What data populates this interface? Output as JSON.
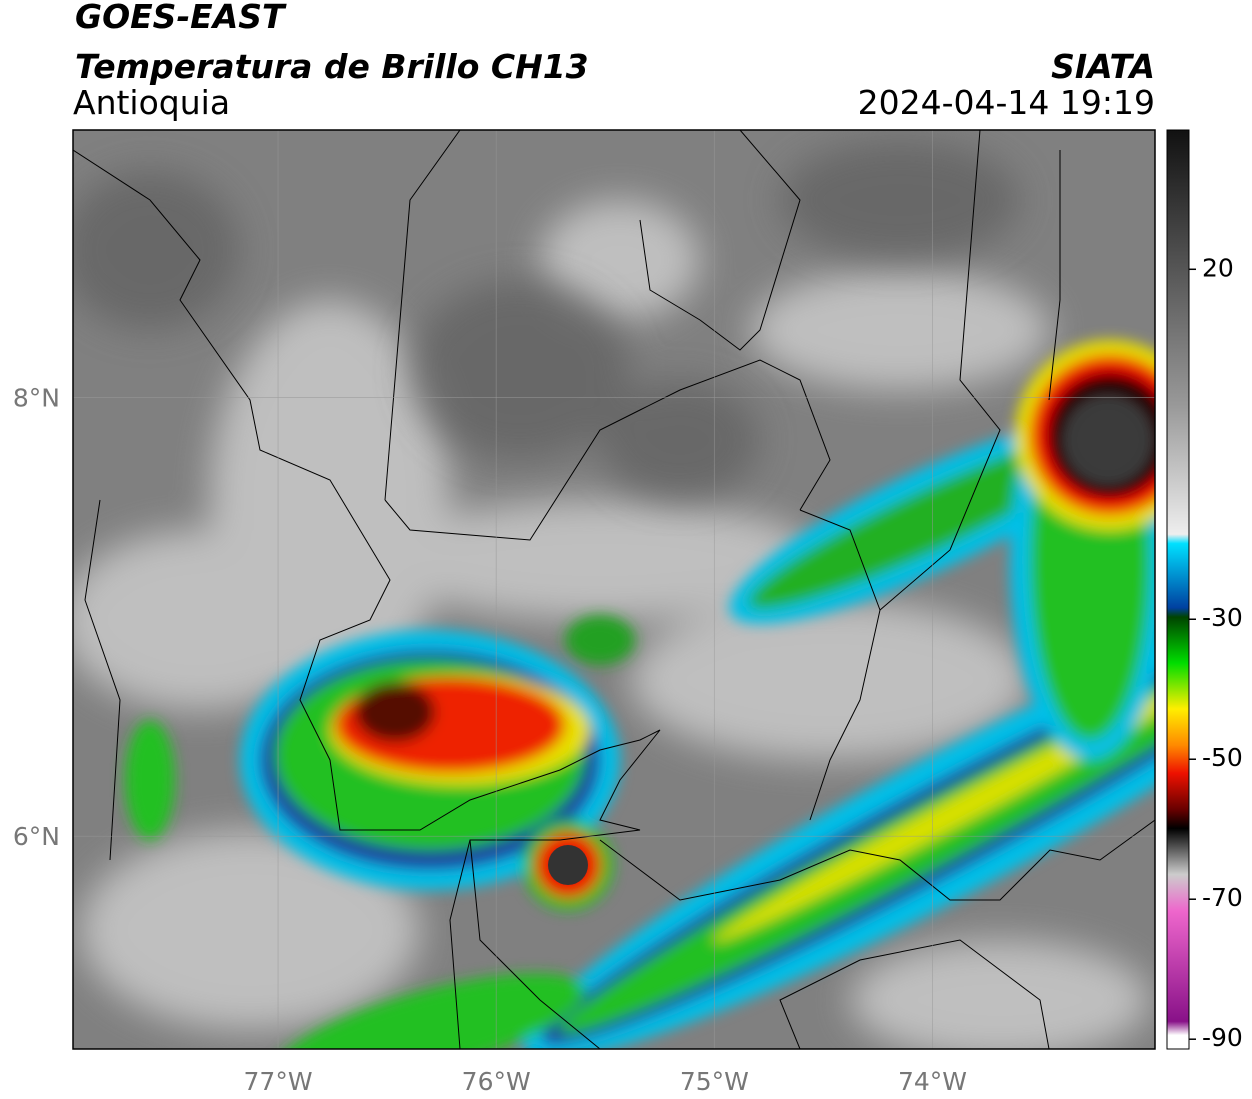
{
  "header": {
    "title": "GOES-EAST",
    "subtitle": "Temperatura de Brillo CH13",
    "region": "Antioquia",
    "source": "SIATA",
    "datetime": "2024-04-14 19:19"
  },
  "map": {
    "xlim": [
      -77.94,
      -72.98
    ],
    "ylim": [
      5.03,
      9.22
    ],
    "xticks": [
      {
        "value": -77,
        "label": "77°W"
      },
      {
        "value": -76,
        "label": "76°W"
      },
      {
        "value": -75,
        "label": "75°W"
      },
      {
        "value": -74,
        "label": "74°W"
      }
    ],
    "yticks": [
      {
        "value": 6,
        "label": "6°N"
      },
      {
        "value": 8,
        "label": "8°N"
      }
    ],
    "grid": true
  },
  "colorbar": {
    "lim": [
      -91.4,
      39.9
    ],
    "ticks": [
      20,
      -30,
      -50,
      -70,
      -90
    ]
  }
}
